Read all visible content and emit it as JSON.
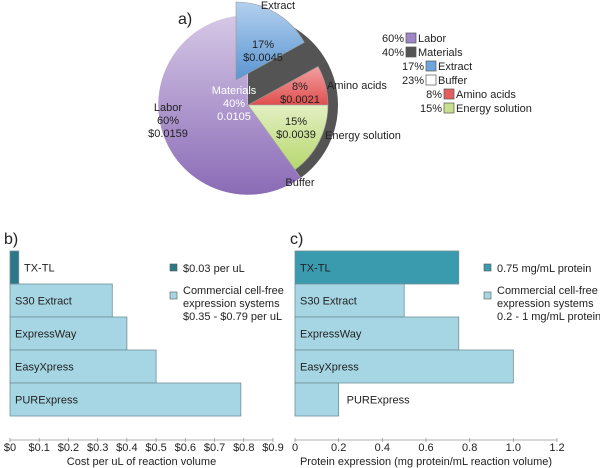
{
  "colors": {
    "labor": "#9f86c6",
    "materials": "#545454",
    "extract": "#6ea6dc",
    "buffer": "#ffffff",
    "amino": "#e35f5f",
    "energy": "#c6e08e",
    "txtl_b": "#2c7888",
    "txtl_c": "#3a9bae",
    "commercial": "#a6d6e3"
  },
  "chart_data": [
    {
      "panel": "a)",
      "type": "pie",
      "slices": [
        {
          "key": "labor",
          "label": "Labor",
          "percent": "60%",
          "value": "$0.0159",
          "fraction": 0.6
        },
        {
          "key": "materials",
          "label": "Materials",
          "percent": "40%",
          "value": "0.0105",
          "fraction": 0.4
        }
      ],
      "sub_slices": [
        {
          "key": "extract",
          "label": "Extract",
          "percent": "17%",
          "value": "$0.0045",
          "fraction": 0.17
        },
        {
          "key": "amino",
          "label": "Amino acids",
          "percent": "8%",
          "value": "$0.0021",
          "fraction": 0.08
        },
        {
          "key": "energy",
          "label": "Energy solution",
          "percent": "15%",
          "value": "$0.0039",
          "fraction": 0.15
        }
      ],
      "buffer_label": "Buffer",
      "legend": [
        {
          "key": "labor",
          "percent": "60%",
          "label": "Labor"
        },
        {
          "key": "materials",
          "percent": "40%",
          "label": "Materials"
        },
        {
          "key": "extract",
          "percent": "17%",
          "label": "Extract"
        },
        {
          "key": "buffer",
          "percent": "23%",
          "label": "Buffer"
        },
        {
          "key": "amino",
          "percent": "8%",
          "label": "Amino acids"
        },
        {
          "key": "energy",
          "percent": "15%",
          "label": "Energy solution"
        }
      ]
    },
    {
      "panel": "b)",
      "type": "bar",
      "orientation": "horizontal",
      "categories": [
        "TX-TL",
        "S30 Extract",
        "ExpressWay",
        "EasyXpress",
        "PURExpress"
      ],
      "values": [
        0.03,
        0.35,
        0.4,
        0.5,
        0.79
      ],
      "xlabel": "Cost per uL of reaction volume",
      "xlim": [
        0,
        0.9
      ],
      "ticks": [
        "$0",
        "$0.1",
        "$0.2",
        "$0.3",
        "$0.4",
        "$0.5",
        "$0.6",
        "$0.7",
        "$0.8",
        "$0.9"
      ],
      "legend": [
        {
          "lines": [
            "$0.03 per uL"
          ],
          "color": "txtl_b"
        },
        {
          "lines": [
            "Commercial cell-free",
            "expression systems",
            "$0.35 - $0.79 per uL"
          ],
          "color": "commercial"
        }
      ]
    },
    {
      "panel": "c)",
      "type": "bar",
      "orientation": "horizontal",
      "categories": [
        "TX-TL",
        "S30 Extract",
        "ExpressWay",
        "EasyXpress",
        "PURExpress"
      ],
      "values": [
        0.75,
        0.5,
        0.75,
        1.0,
        0.2
      ],
      "xlabel": "Protein expression (mg protein/mL reaction volume)",
      "xlim": [
        0,
        1.2
      ],
      "ticks": [
        "0",
        "0.2",
        "0.4",
        "0.6",
        "0.8",
        "1.0",
        "1.2"
      ],
      "legend": [
        {
          "lines": [
            "0.75 mg/mL protein"
          ],
          "color": "txtl_c"
        },
        {
          "lines": [
            "Commercial cell-free",
            "expression systems",
            "0.2 - 1 mg/mL protein"
          ],
          "color": "commercial"
        }
      ]
    }
  ]
}
